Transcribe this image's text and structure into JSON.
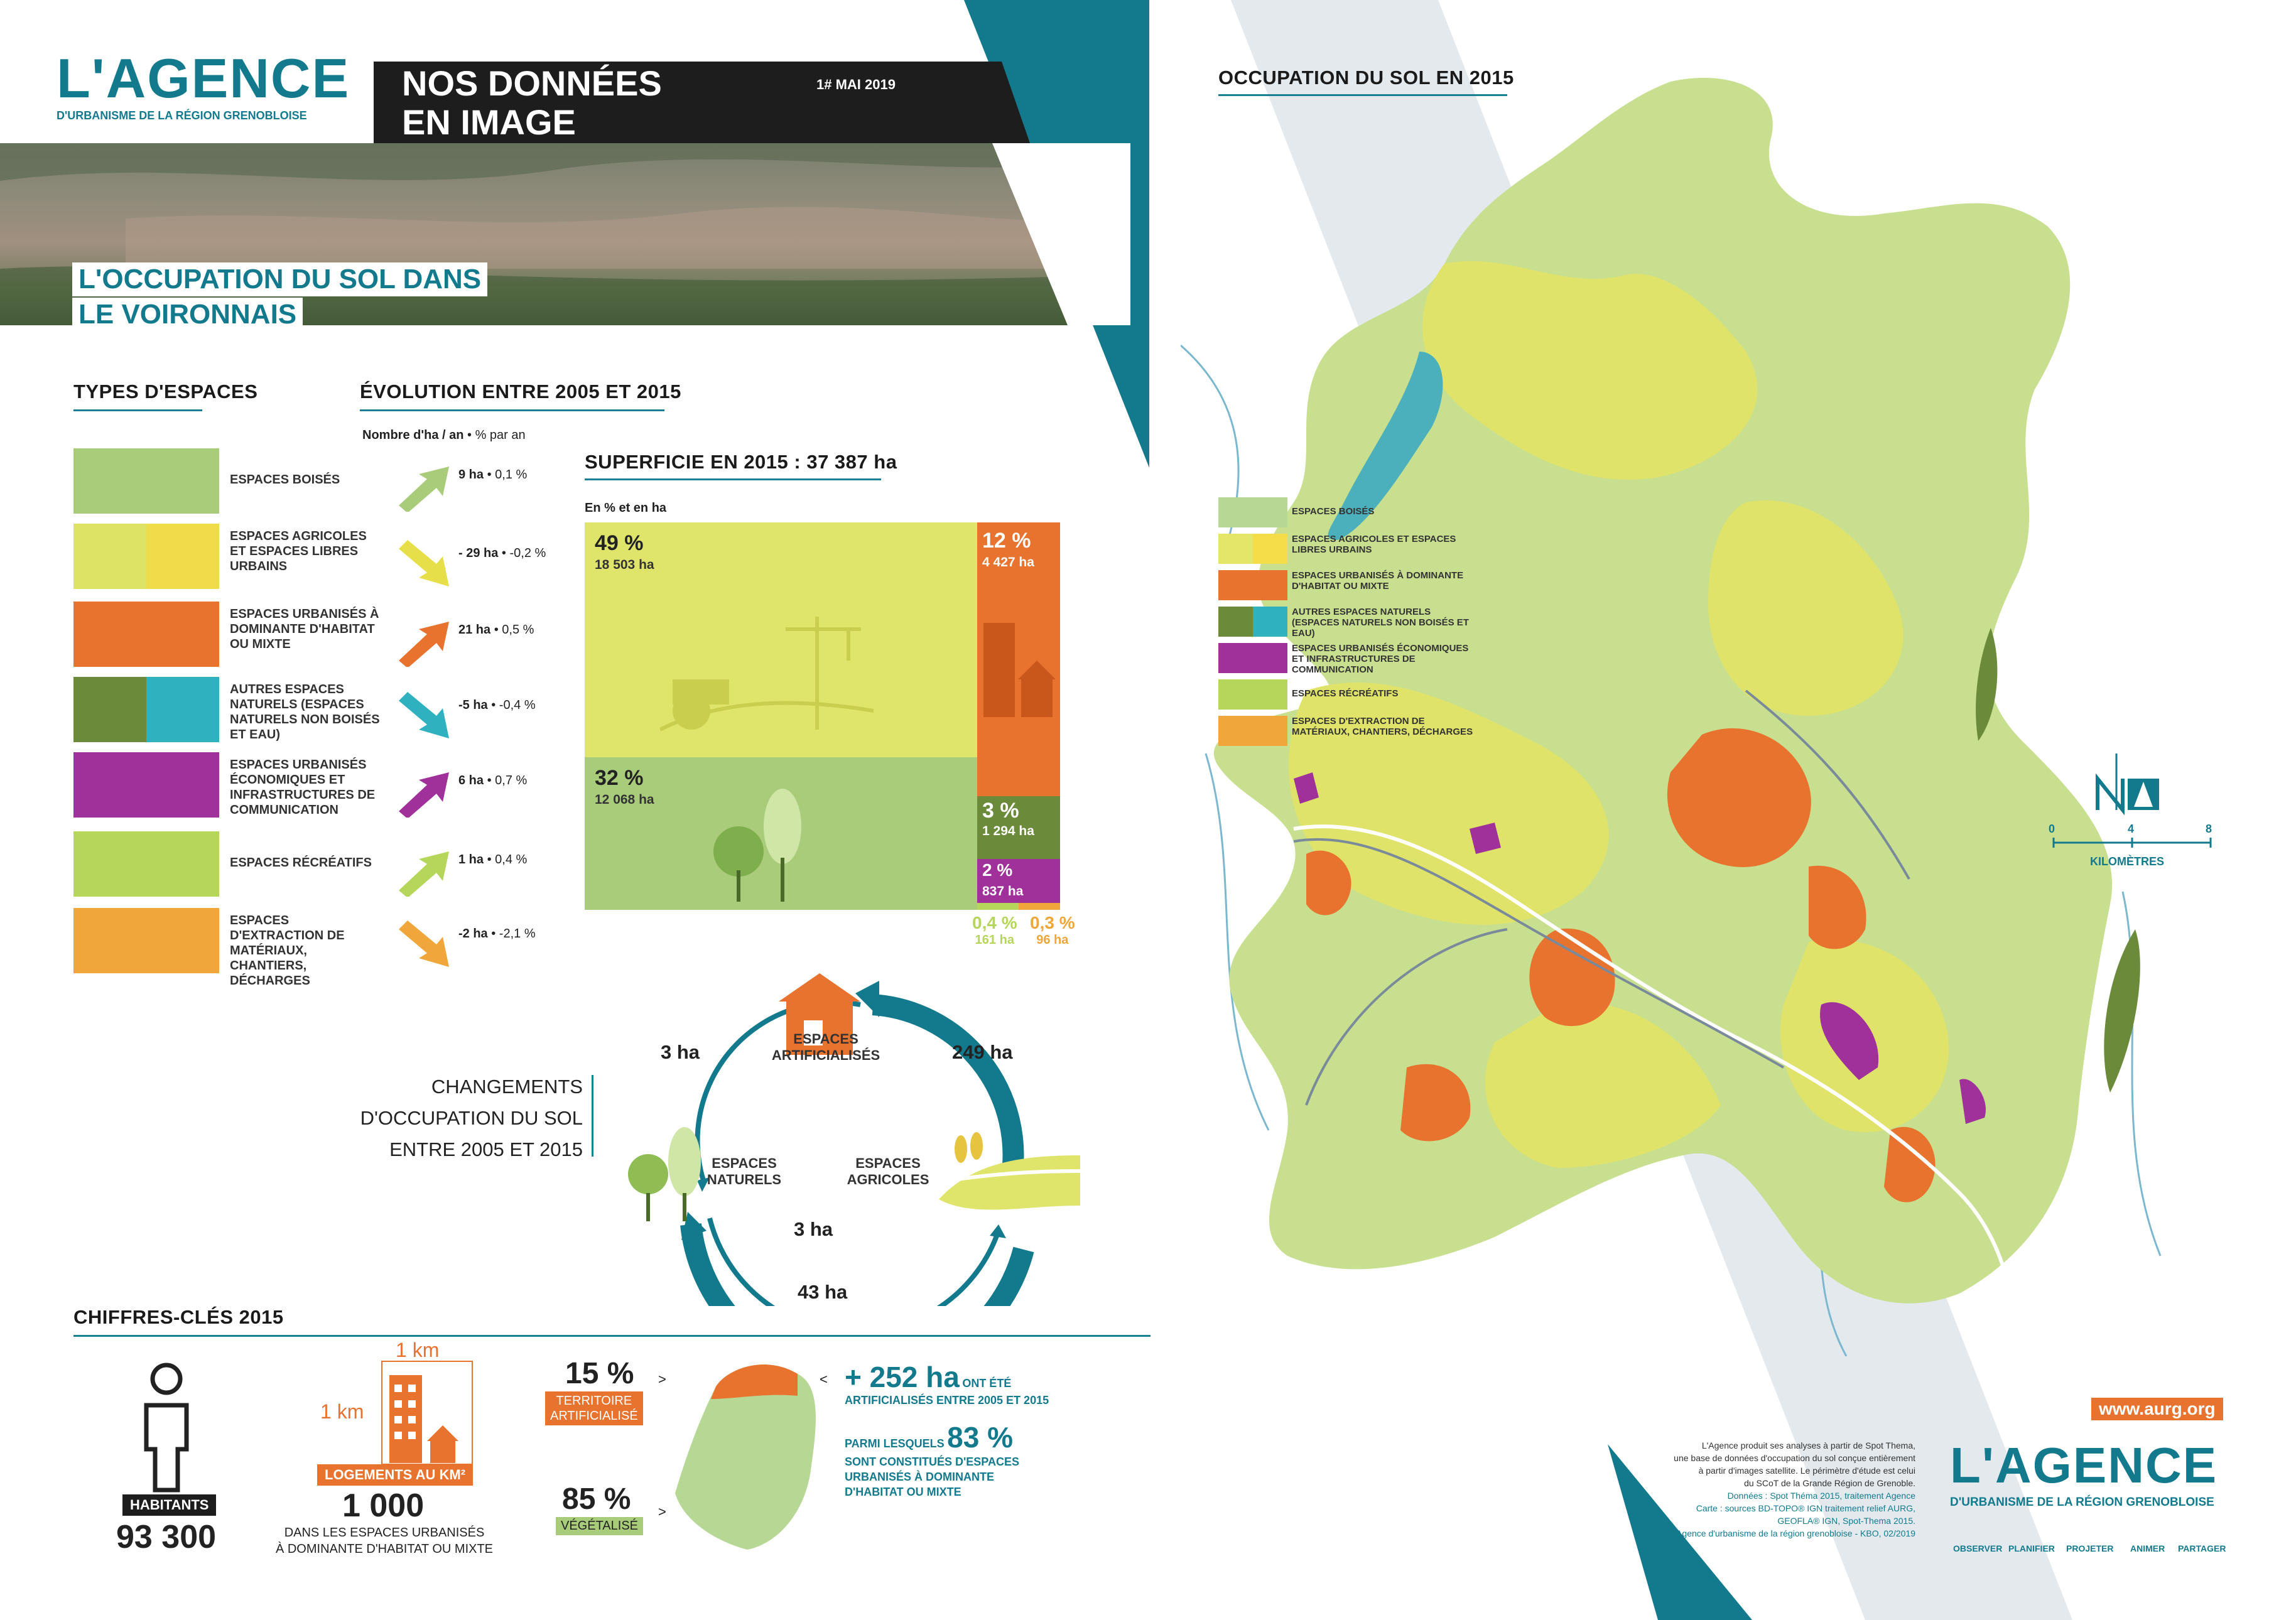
{
  "brand": {
    "logo": "L'AGENCE",
    "logo_sub": "D'URBANISME DE LA RÉGION GRENOBLOISE"
  },
  "header": {
    "title": "NOS DONNÉES EN IMAGE",
    "title_line1": "NOS DONNÉES",
    "title_line2": "EN IMAGE",
    "issue": "1# MAI 2019"
  },
  "hero": {
    "title_line1": "L'OCCUPATION DU SOL DANS",
    "title_line2": "LE VOIRONNAIS"
  },
  "types": {
    "title": "TYPES D'ESPACES",
    "items": [
      {
        "label": "ESPACES BOISÉS",
        "colors": [
          "#a8cc7a"
        ]
      },
      {
        "label": "ESPACES AGRICOLES ET ESPACES LIBRES URBAINS",
        "colors": [
          "#dde365",
          "#f0db4a"
        ]
      },
      {
        "label": "ESPACES URBANISÉS À DOMINANTE D'HABITAT OU MIXTE",
        "colors": [
          "#e8732f"
        ]
      },
      {
        "label": "AUTRES ESPACES NATURELS (ESPACES NATURELS NON BOISÉS ET EAU)",
        "colors": [
          "#6b8a3a",
          "#2fb1bf"
        ]
      },
      {
        "label": "ESPACES URBANISÉS ÉCONOMIQUES ET INFRASTRUCTURES DE COMMUNICATION",
        "colors": [
          "#a0309a"
        ]
      },
      {
        "label": "ESPACES RÉCRÉATIFS",
        "colors": [
          "#b5d65a"
        ]
      },
      {
        "label": "ESPACES D'EXTRACTION DE MATÉRIAUX, CHANTIERS, DÉCHARGES",
        "colors": [
          "#f0a63a"
        ]
      }
    ]
  },
  "evolution": {
    "title": "ÉVOLUTION ENTRE 2005 ET 2015",
    "subtitle_bold": "Nombre d'ha / an",
    "subtitle_rest": " • % par an",
    "items": [
      {
        "ha": "9 ha",
        "pct": " • 0,1 %",
        "dir": "up",
        "color": "#a8cc7a"
      },
      {
        "ha": "- 29 ha",
        "pct": " • -0,2 %",
        "dir": "down",
        "color": "#e7df4a"
      },
      {
        "ha": "21 ha",
        "pct": " • 0,5 %",
        "dir": "up",
        "color": "#e8732f"
      },
      {
        "ha": "-5 ha",
        "pct": " • -0,4 %",
        "dir": "down",
        "color": "#2fb1bf"
      },
      {
        "ha": "6 ha",
        "pct": " • 0,7 %",
        "dir": "up",
        "color": "#a0309a"
      },
      {
        "ha": "1 ha",
        "pct": " • 0,4 %",
        "dir": "up",
        "color": "#b5d65a"
      },
      {
        "ha": "-2 ha",
        "pct": " • -2,1 %",
        "dir": "down",
        "color": "#f0a63a"
      }
    ]
  },
  "superficie": {
    "title": "SUPERFICIE EN 2015 : 37 387 ha",
    "subtitle": "En % et en ha",
    "cells": [
      {
        "pct": "49 %",
        "ha": "18 503 ha",
        "color": "#dfe46b"
      },
      {
        "pct": "32 %",
        "ha": "12 068 ha",
        "color": "#a8cc7a"
      },
      {
        "pct": "12 %",
        "ha": "4 427 ha",
        "color": "#e8732f"
      },
      {
        "pct": "3 %",
        "ha": "1 294 ha",
        "color": "#6b8a3a"
      },
      {
        "pct": "2 %",
        "ha": "837 ha",
        "color": "#a0309a"
      },
      {
        "pct": "0,4 %",
        "ha": "161 ha",
        "color": "#b5d65a"
      },
      {
        "pct": "0,3 %",
        "ha": "96 ha",
        "color": "#f0a63a"
      }
    ]
  },
  "changes": {
    "title_line1": "CHANGEMENTS",
    "title_line2": "D'OCCUPATION DU SOL",
    "title_line3": "ENTRE 2005 ET 2015",
    "node_artificial": "ESPACES ARTIFICIALISÉS",
    "node_natural": "ESPACES NATURELS",
    "node_agricultural": "ESPACES AGRICOLES",
    "flow_nat_to_art": "3 ha",
    "flow_agri_to_art": "249 ha",
    "flow_nat_to_agri": "3 ha",
    "flow_agri_to_nat": "43 ha"
  },
  "keyfigures": {
    "title": "CHIFFRES-CLÉS 2015",
    "habitants_label": "HABITANTS",
    "habitants_value": "93 300",
    "km_top": "1 km",
    "km_side": "1 km",
    "logements_label": "LOGEMENTS AU KM²",
    "logements_value": "1 000",
    "logements_desc_line1": "DANS LES ESPACES URBANISÉS",
    "logements_desc_line2": "À DOMINANTE D'HABITAT OU MIXTE",
    "artif_pct": "15 %",
    "artif_label_line1": "TERRITOIRE",
    "artif_label_line2": "ARTIFICIALISÉ",
    "veg_pct": "85 %",
    "veg_label": "VÉGÉTALISÉ",
    "gain_value": "+ 252 ha",
    "gain_text1": "ONT ÉTÉ",
    "gain_text2": "ARTIFICIALISÉS ENTRE 2005 ET 2015",
    "among_text": "PARMI LESQUELS",
    "among_pct": "83 %",
    "among_desc_line1": "SONT CONSTITUÉS D'ESPACES",
    "among_desc_line2": "URBANISÉS À DOMINANTE",
    "among_desc_line3": "D'HABITAT OU MIXTE"
  },
  "map": {
    "title": "OCCUPATION DU SOL EN 2015",
    "legend": [
      {
        "label": "ESPACES BOISÉS",
        "colors": [
          "#b7d894"
        ]
      },
      {
        "label": "ESPACES AGRICOLES ET ESPACES LIBRES URBAINS",
        "colors": [
          "#e4e66a",
          "#f5dc49"
        ]
      },
      {
        "label": "ESPACES URBANISÉS À DOMINANTE D'HABITAT OU MIXTE",
        "colors": [
          "#e8732f"
        ]
      },
      {
        "label": "AUTRES ESPACES NATURELS (ESPACES NATURELS NON BOISÉS ET EAU)",
        "colors": [
          "#6b8a3a",
          "#2fb1bf"
        ]
      },
      {
        "label": "ESPACES URBANISÉS ÉCONOMIQUES ET INFRASTRUCTURES DE COMMUNICATION",
        "colors": [
          "#a0309a"
        ]
      },
      {
        "label": "ESPACES RÉCRÉATIFS",
        "colors": [
          "#b5d65a"
        ]
      },
      {
        "label": "ESPACES D'EXTRACTION DE MATÉRIAUX, CHANTIERS, DÉCHARGES",
        "colors": [
          "#f0a63a"
        ]
      }
    ],
    "scale_ticks": [
      "0",
      "4",
      "8"
    ],
    "scale_unit": "KILOMÈTRES",
    "north": "N"
  },
  "footer": {
    "note_lines": [
      "L'Agence produit ses analyses à partir de Spot Thema,",
      "une base de données d'occupation du sol conçue entièrement",
      "à partir d'images satellite. Le périmètre d'étude est celui",
      "du SCoT de la Grande Région de Grenoble."
    ],
    "source_lines": [
      "Données : Spot Théma 2015, traitement Agence",
      "Carte : sources BD-TOPO® IGN traitement relief AURG,",
      "GEOFLA® IGN, Spot-Thema 2015.",
      "L'Agence d'urbanisme de la région grenobloise - KBO, 02/2019"
    ],
    "url": "www.aurg.org",
    "logo": "L'AGENCE",
    "logo_sub": "D'URBANISME DE LA RÉGION GRENOBLOISE",
    "nav": [
      "OBSERVER",
      "PLANIFIER",
      "PROJETER",
      "ANIMER",
      "PARTAGER"
    ]
  }
}
